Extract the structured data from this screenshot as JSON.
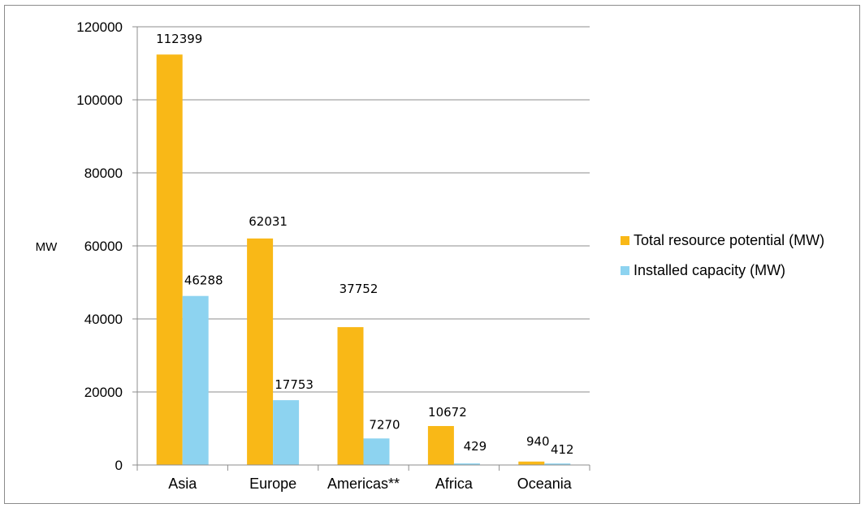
{
  "chart_data": {
    "type": "bar",
    "title": "",
    "xlabel": "",
    "ylabel": "MW",
    "ylim": [
      0,
      120000
    ],
    "y_ticks": [
      0,
      20000,
      40000,
      60000,
      80000,
      100000,
      120000
    ],
    "grid": true,
    "legend_position": "right",
    "categories": [
      "Asia",
      "Europe",
      "Americas**",
      "Africa",
      "Oceania"
    ],
    "series": [
      {
        "name": "Total resource potential (MW)",
        "color": "#F9B817",
        "values": [
          112399,
          62031,
          37752,
          10672,
          940
        ]
      },
      {
        "name": "Installed capacity (MW)",
        "color": "#8DD3F0",
        "values": [
          46288,
          17753,
          7270,
          429,
          412
        ]
      }
    ]
  }
}
